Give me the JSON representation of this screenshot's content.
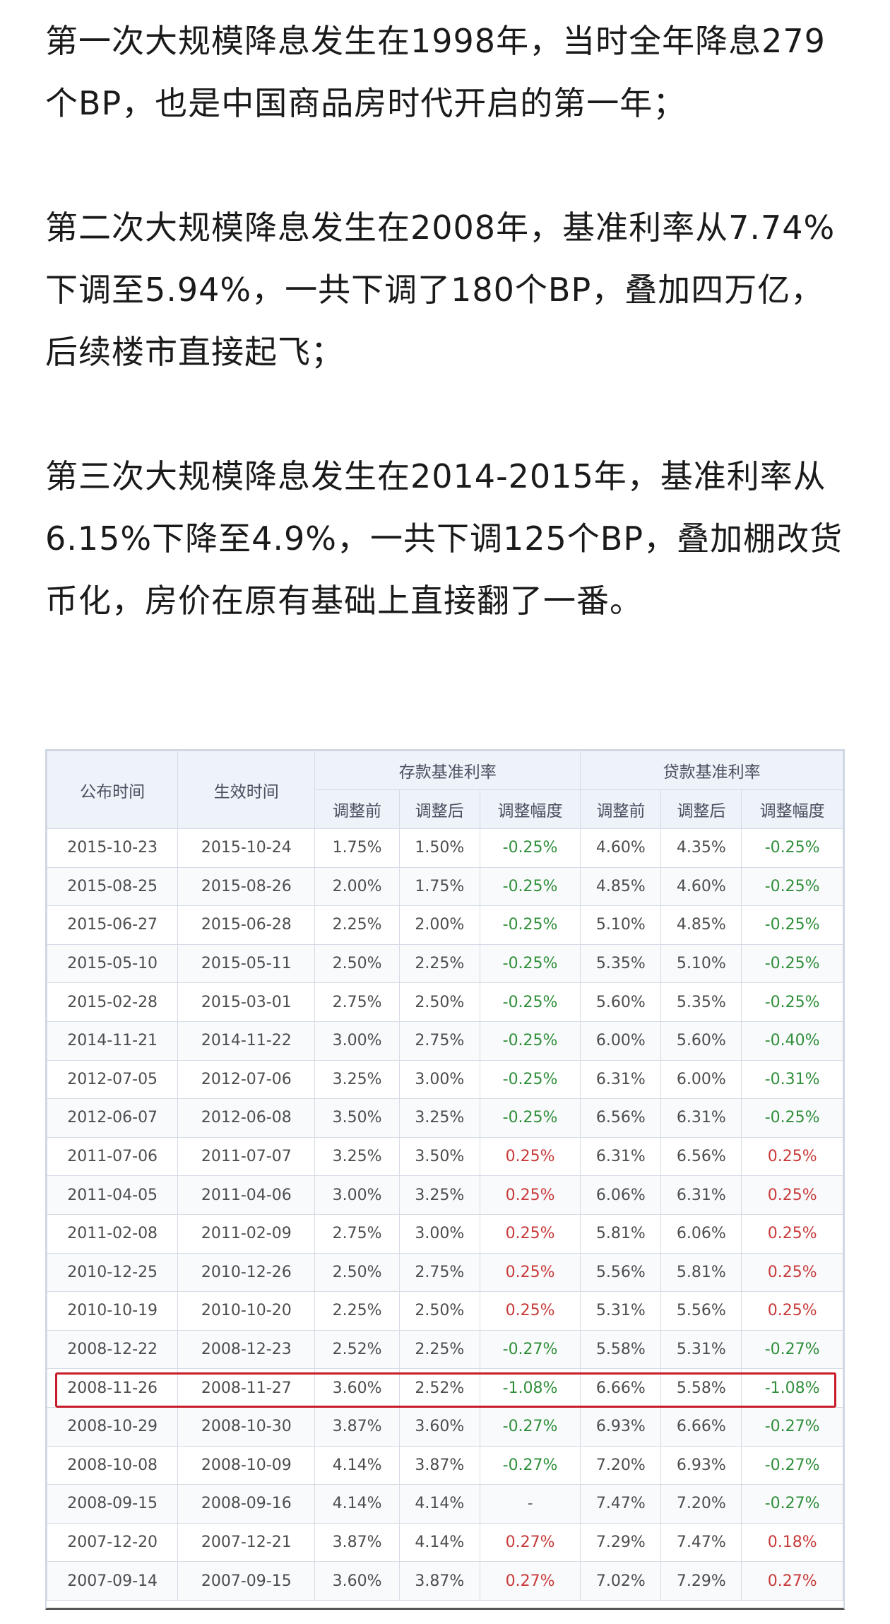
{
  "article": {
    "paragraphs": [
      "第一次大规模降息发生在1998年，当时全年降息279个BP，也是中国商品房时代开启的第一年；",
      "第二次大规模降息发生在2008年，基准利率从7.74%下调至5.94%，一共下调了180个BP，叠加四万亿，后续楼市直接起飞；",
      "第三次大规模降息发生在2014-2015年，基准利率从6.15%下降至4.9%，一共下调125个BP，叠加棚改货币化，房价在原有基础上直接翻了一番。"
    ]
  },
  "table": {
    "headers": {
      "announce": "公布时间",
      "effective": "生效时间",
      "deposit_group": "存款基准利率",
      "loan_group": "贷款基准利率",
      "before": "调整前",
      "after": "调整后",
      "change": "调整幅度"
    },
    "rows": [
      {
        "announce": "2015-10-23",
        "effective": "2015-10-24",
        "d_before": "1.75%",
        "d_after": "1.50%",
        "d_change": "-0.25%",
        "d_dir": "neg",
        "l_before": "4.60%",
        "l_after": "4.35%",
        "l_change": "-0.25%",
        "l_dir": "neg"
      },
      {
        "announce": "2015-08-25",
        "effective": "2015-08-26",
        "d_before": "2.00%",
        "d_after": "1.75%",
        "d_change": "-0.25%",
        "d_dir": "neg",
        "l_before": "4.85%",
        "l_after": "4.60%",
        "l_change": "-0.25%",
        "l_dir": "neg"
      },
      {
        "announce": "2015-06-27",
        "effective": "2015-06-28",
        "d_before": "2.25%",
        "d_after": "2.00%",
        "d_change": "-0.25%",
        "d_dir": "neg",
        "l_before": "5.10%",
        "l_after": "4.85%",
        "l_change": "-0.25%",
        "l_dir": "neg"
      },
      {
        "announce": "2015-05-10",
        "effective": "2015-05-11",
        "d_before": "2.50%",
        "d_after": "2.25%",
        "d_change": "-0.25%",
        "d_dir": "neg",
        "l_before": "5.35%",
        "l_after": "5.10%",
        "l_change": "-0.25%",
        "l_dir": "neg"
      },
      {
        "announce": "2015-02-28",
        "effective": "2015-03-01",
        "d_before": "2.75%",
        "d_after": "2.50%",
        "d_change": "-0.25%",
        "d_dir": "neg",
        "l_before": "5.60%",
        "l_after": "5.35%",
        "l_change": "-0.25%",
        "l_dir": "neg"
      },
      {
        "announce": "2014-11-21",
        "effective": "2014-11-22",
        "d_before": "3.00%",
        "d_after": "2.75%",
        "d_change": "-0.25%",
        "d_dir": "neg",
        "l_before": "6.00%",
        "l_after": "5.60%",
        "l_change": "-0.40%",
        "l_dir": "neg"
      },
      {
        "announce": "2012-07-05",
        "effective": "2012-07-06",
        "d_before": "3.25%",
        "d_after": "3.00%",
        "d_change": "-0.25%",
        "d_dir": "neg",
        "l_before": "6.31%",
        "l_after": "6.00%",
        "l_change": "-0.31%",
        "l_dir": "neg"
      },
      {
        "announce": "2012-06-07",
        "effective": "2012-06-08",
        "d_before": "3.50%",
        "d_after": "3.25%",
        "d_change": "-0.25%",
        "d_dir": "neg",
        "l_before": "6.56%",
        "l_after": "6.31%",
        "l_change": "-0.25%",
        "l_dir": "neg"
      },
      {
        "announce": "2011-07-06",
        "effective": "2011-07-07",
        "d_before": "3.25%",
        "d_after": "3.50%",
        "d_change": "0.25%",
        "d_dir": "pos",
        "l_before": "6.31%",
        "l_after": "6.56%",
        "l_change": "0.25%",
        "l_dir": "pos"
      },
      {
        "announce": "2011-04-05",
        "effective": "2011-04-06",
        "d_before": "3.00%",
        "d_after": "3.25%",
        "d_change": "0.25%",
        "d_dir": "pos",
        "l_before": "6.06%",
        "l_after": "6.31%",
        "l_change": "0.25%",
        "l_dir": "pos"
      },
      {
        "announce": "2011-02-08",
        "effective": "2011-02-09",
        "d_before": "2.75%",
        "d_after": "3.00%",
        "d_change": "0.25%",
        "d_dir": "pos",
        "l_before": "5.81%",
        "l_after": "6.06%",
        "l_change": "0.25%",
        "l_dir": "pos"
      },
      {
        "announce": "2010-12-25",
        "effective": "2010-12-26",
        "d_before": "2.50%",
        "d_after": "2.75%",
        "d_change": "0.25%",
        "d_dir": "pos",
        "l_before": "5.56%",
        "l_after": "5.81%",
        "l_change": "0.25%",
        "l_dir": "pos"
      },
      {
        "announce": "2010-10-19",
        "effective": "2010-10-20",
        "d_before": "2.25%",
        "d_after": "2.50%",
        "d_change": "0.25%",
        "d_dir": "pos",
        "l_before": "5.31%",
        "l_after": "5.56%",
        "l_change": "0.25%",
        "l_dir": "pos"
      },
      {
        "announce": "2008-12-22",
        "effective": "2008-12-23",
        "d_before": "2.52%",
        "d_after": "2.25%",
        "d_change": "-0.27%",
        "d_dir": "neg",
        "l_before": "5.58%",
        "l_after": "5.31%",
        "l_change": "-0.27%",
        "l_dir": "neg"
      },
      {
        "announce": "2008-11-26",
        "effective": "2008-11-27",
        "d_before": "3.60%",
        "d_after": "2.52%",
        "d_change": "-1.08%",
        "d_dir": "neg",
        "l_before": "6.66%",
        "l_after": "5.58%",
        "l_change": "-1.08%",
        "l_dir": "neg"
      },
      {
        "announce": "2008-10-29",
        "effective": "2008-10-30",
        "d_before": "3.87%",
        "d_after": "3.60%",
        "d_change": "-0.27%",
        "d_dir": "neg",
        "l_before": "6.93%",
        "l_after": "6.66%",
        "l_change": "-0.27%",
        "l_dir": "neg"
      },
      {
        "announce": "2008-10-08",
        "effective": "2008-10-09",
        "d_before": "4.14%",
        "d_after": "3.87%",
        "d_change": "-0.27%",
        "d_dir": "neg",
        "l_before": "7.20%",
        "l_after": "6.93%",
        "l_change": "-0.27%",
        "l_dir": "neg"
      },
      {
        "announce": "2008-09-15",
        "effective": "2008-09-16",
        "d_before": "4.14%",
        "d_after": "4.14%",
        "d_change": "-",
        "d_dir": "none",
        "l_before": "7.47%",
        "l_after": "7.20%",
        "l_change": "-0.27%",
        "l_dir": "neg"
      },
      {
        "announce": "2007-12-20",
        "effective": "2007-12-21",
        "d_before": "3.87%",
        "d_after": "4.14%",
        "d_change": "0.27%",
        "d_dir": "pos",
        "l_before": "7.29%",
        "l_after": "7.47%",
        "l_change": "0.18%",
        "l_dir": "pos"
      },
      {
        "announce": "2007-09-14",
        "effective": "2007-09-15",
        "d_before": "3.60%",
        "d_after": "3.87%",
        "d_change": "0.27%",
        "d_dir": "pos",
        "l_before": "7.02%",
        "l_after": "7.29%",
        "l_change": "0.27%",
        "l_dir": "pos"
      }
    ],
    "highlighted_row": 14
  },
  "colors": {
    "decrease": "#2f8f3a",
    "increase": "#c93a3a",
    "highlight_border": "#c81c2a",
    "header_bg": "#eef2f9"
  }
}
